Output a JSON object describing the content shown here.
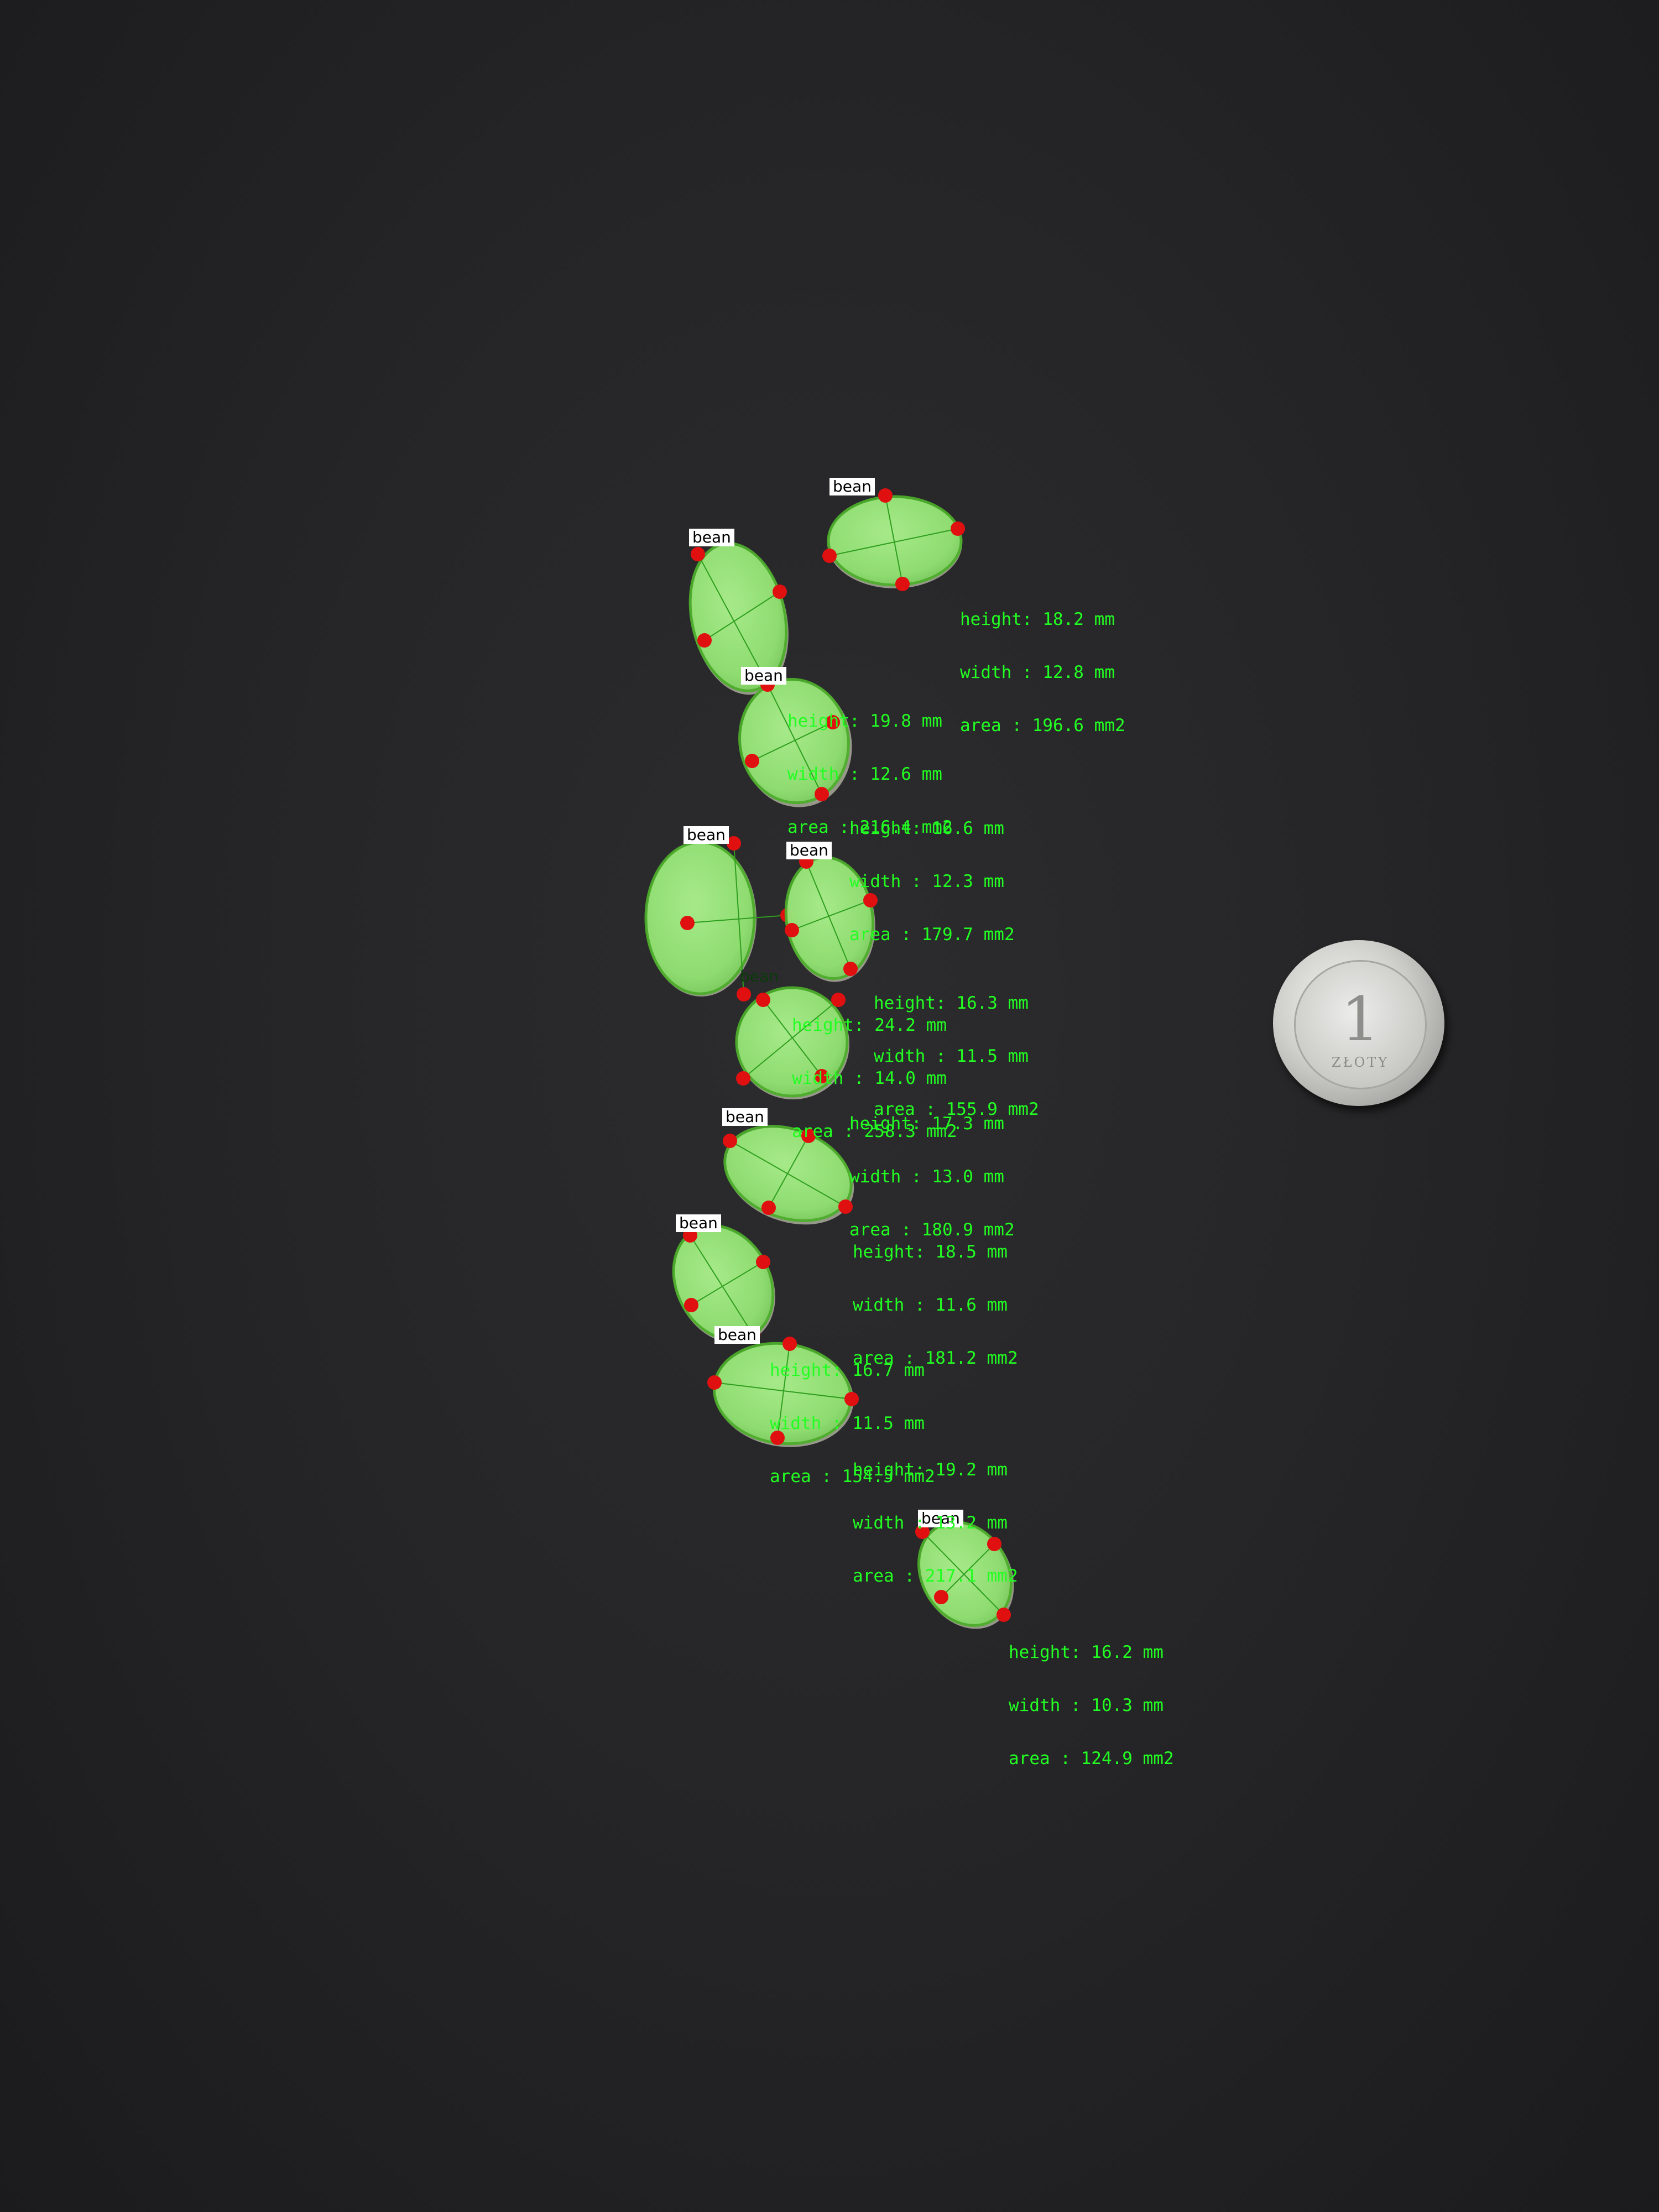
{
  "bean_label": "bean",
  "coin": {
    "denomination": "1",
    "text": "ZŁOTY"
  },
  "beans": [
    {
      "label": "bean",
      "height": "height: 18.2 mm",
      "width": "width : 12.8 mm",
      "area": "area : 196.6 mm2"
    },
    {
      "label": "bean",
      "height": "height: 19.8 mm",
      "width": "width : 12.6 mm",
      "area": "area : 216.4 mm2"
    },
    {
      "label": "bean",
      "height": "height: 16.6 mm",
      "width": "width : 12.3 mm",
      "area": "area : 179.7 mm2"
    },
    {
      "label": "bean",
      "height": "height: 24.2 mm",
      "width": "width : 14.0 mm",
      "area": "area : 258.3 mm2"
    },
    {
      "label": "bean",
      "height": "height: 16.3 mm",
      "width": "width : 11.5 mm",
      "area": "area : 155.9 mm2"
    },
    {
      "label": "bean",
      "height": "height: 17.3 mm",
      "width": "width : 13.0 mm",
      "area": "area : 180.9 mm2"
    },
    {
      "label": "bean",
      "height": "height: 18.5 mm",
      "width": "width : 11.6 mm",
      "area": "area : 181.2 mm2"
    },
    {
      "label": "bean",
      "height": "height: 16.7 mm",
      "width": "width : 11.5 mm",
      "area": "area : 154.5 mm2"
    },
    {
      "label": "bean",
      "height": "height: 19.2 mm",
      "width": "width : 13.2 mm",
      "area": "area : 217.1 mm2"
    },
    {
      "label": "bean",
      "height": "height: 16.2 mm",
      "width": "width : 10.3 mm",
      "area": "area : 124.9 mm2"
    }
  ]
}
